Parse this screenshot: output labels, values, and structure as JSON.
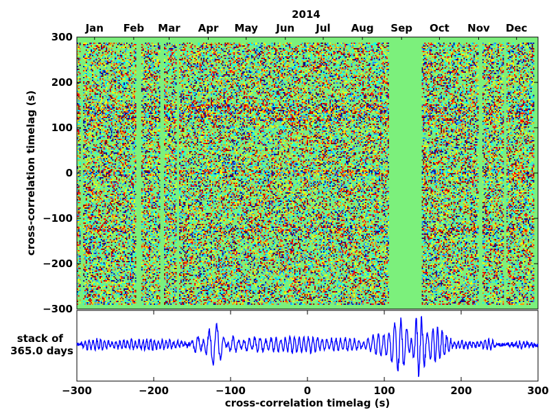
{
  "chart_data": [
    {
      "type": "heatmap",
      "title": "2014",
      "xlabel": "",
      "ylabel": "cross-correlation timelag (s)",
      "ylim": [
        -300,
        300
      ],
      "yticks": [
        300,
        200,
        100,
        0,
        -100,
        -200,
        -300
      ],
      "ytick_labels": [
        "300",
        "200",
        "100",
        "0",
        "−100",
        "−200",
        "−300"
      ],
      "x": {
        "unit": "date",
        "start": "2014-01-01",
        "end": "2014-12-31"
      },
      "months": [
        "Jan",
        "Feb",
        "Mar",
        "Apr",
        "May",
        "Jun",
        "Jul",
        "Aug",
        "Sep",
        "Oct",
        "Nov",
        "Dec"
      ],
      "month_label_dates": [
        "2014-01-15",
        "2014-02-15",
        "2014-03-15",
        "2014-04-15",
        "2014-05-15",
        "2014-06-15",
        "2014-07-15",
        "2014-08-15",
        "2014-09-15",
        "2014-10-15",
        "2014-11-15",
        "2014-12-15"
      ],
      "data_gaps": [
        [
          "2014-01-04",
          "2014-01-05"
        ],
        [
          "2014-02-17",
          "2014-02-20"
        ],
        [
          "2014-03-08",
          "2014-03-10"
        ],
        [
          "2014-03-21",
          "2014-03-22"
        ],
        [
          "2014-09-05",
          "2014-09-30"
        ],
        [
          "2014-11-15",
          "2014-11-17"
        ],
        [
          "2014-12-05",
          "2014-12-06"
        ],
        [
          "2014-12-29",
          "2014-12-31"
        ]
      ],
      "colormap": [
        "#0000a0",
        "#1e90ff",
        "#00ffff",
        "#7cfc70",
        "#ffff00",
        "#ff8c00",
        "#ff0000",
        "#8b0000"
      ],
      "background_color": "#7cf07c",
      "coherent_bands_lag_s": [
        -125,
        0,
        120,
        135,
        145
      ],
      "grid": false
    },
    {
      "type": "line",
      "label": "stack of\n365.0 days",
      "label_lines": [
        "stack of",
        "365.0 days"
      ],
      "xlabel": "cross-correlation timelag (s)",
      "xlim": [
        -300,
        300
      ],
      "xticks": [
        -300,
        -200,
        -100,
        0,
        100,
        200,
        300
      ],
      "xtick_labels": [
        "−300",
        "−200",
        "−100",
        "0",
        "100",
        "200",
        "300"
      ],
      "color": "#0000ff",
      "wave_packets": [
        {
          "center": -278,
          "width": 20,
          "amplitude": 0.13,
          "period": 5
        },
        {
          "center": -230,
          "width": 40,
          "amplitude": 0.1,
          "period": 5
        },
        {
          "center": -185,
          "width": 35,
          "amplitude": 0.1,
          "period": 5
        },
        {
          "center": -140,
          "width": 10,
          "amplitude": 0.25,
          "period": 8
        },
        {
          "center": -120,
          "width": 12,
          "amplitude": 0.62,
          "period": 10
        },
        {
          "center": -98,
          "width": 10,
          "amplitude": 0.2,
          "period": 7
        },
        {
          "center": -65,
          "width": 20,
          "amplitude": 0.22,
          "period": 7
        },
        {
          "center": -20,
          "width": 28,
          "amplitude": 0.22,
          "period": 6
        },
        {
          "center": 15,
          "width": 22,
          "amplitude": 0.14,
          "period": 6
        },
        {
          "center": 55,
          "width": 25,
          "amplitude": 0.18,
          "period": 6
        },
        {
          "center": 95,
          "width": 15,
          "amplitude": 0.34,
          "period": 7
        },
        {
          "center": 120,
          "width": 12,
          "amplitude": 0.82,
          "period": 8
        },
        {
          "center": 146,
          "width": 10,
          "amplitude": 1.0,
          "period": 7
        },
        {
          "center": 168,
          "width": 15,
          "amplitude": 0.5,
          "period": 6
        },
        {
          "center": 200,
          "width": 25,
          "amplitude": 0.1,
          "period": 5
        },
        {
          "center": 235,
          "width": 10,
          "amplitude": 0.13,
          "period": 5
        },
        {
          "center": 280,
          "width": 15,
          "amplitude": 0.08,
          "period": 5
        }
      ],
      "noise_level": 0.06
    }
  ]
}
